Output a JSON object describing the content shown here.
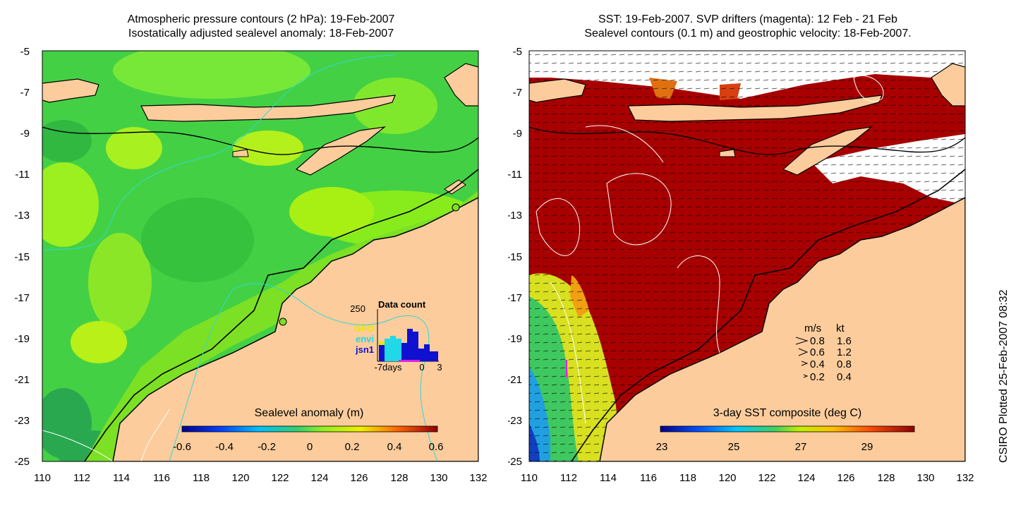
{
  "left": {
    "title_line1": "Atmospheric pressure contours (2 hPa): 19-Feb-2007",
    "title_line2": "Isostatically adjusted sealevel anomaly: 18-Feb-2007",
    "y_ticks": [
      "-5",
      "-7",
      "-9",
      "-11",
      "-13",
      "-15",
      "-17",
      "-19",
      "-21",
      "-23",
      "-25"
    ],
    "x_ticks": [
      "110",
      "112",
      "114",
      "116",
      "118",
      "120",
      "122",
      "124",
      "126",
      "128",
      "130",
      "132"
    ],
    "colorbar_title": "Sealevel anomaly (m)",
    "colorbar_ticks": [
      "-0.6",
      "-0.4",
      "-0.2",
      "0",
      "0.2",
      "0.4",
      "0.6"
    ],
    "inset": {
      "top_value": "250",
      "title": "Data count",
      "labels": [
        "GFO",
        "envi",
        "jsn1"
      ],
      "x_labels": [
        "-7days",
        "0",
        "3"
      ],
      "colors": {
        "gfo": "#e8e800",
        "envi": "#20d8e8",
        "jsn1": "#1010d0"
      }
    }
  },
  "right": {
    "title_line1": "SST: 19-Feb-2007. SVP drifters (magenta): 12 Feb - 21 Feb",
    "title_line2": "Sealevel contours (0.1 m) and geostrophic velocity: 18-Feb-2007.",
    "y_ticks": [
      "-5",
      "-7",
      "-9",
      "-11",
      "-13",
      "-15",
      "-17",
      "-19",
      "-21",
      "-23",
      "-25"
    ],
    "x_ticks": [
      "110",
      "112",
      "114",
      "116",
      "118",
      "120",
      "122",
      "124",
      "126",
      "128",
      "130",
      "132"
    ],
    "colorbar_title": "3-day SST composite (deg C)",
    "colorbar_ticks": [
      "23",
      "25",
      "27",
      "29"
    ],
    "legend": {
      "header_ms": "m/s",
      "header_kt": "kt",
      "rows": [
        {
          "ms": "0.8",
          "kt": "1.6"
        },
        {
          "ms": "0.6",
          "kt": "1.2"
        },
        {
          "ms": "0.4",
          "kt": "0.8"
        },
        {
          "ms": "0.2",
          "kt": "0.4"
        }
      ]
    }
  },
  "footer_stamp": "CSIRO Plotted 25-Feb-2007 08:32",
  "colors": {
    "land": "#fccc9c",
    "ocean_green": "#3dd23d",
    "sst_dark_red": "#a00000",
    "cloud": "#ffffff"
  }
}
